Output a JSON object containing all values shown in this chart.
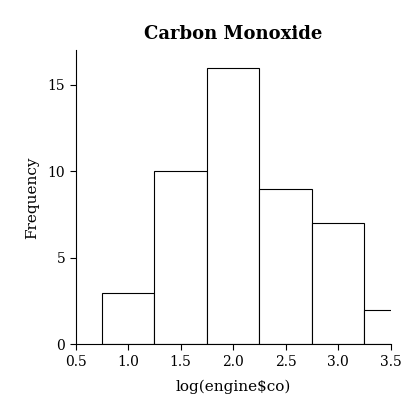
{
  "title": "Carbon Monoxide",
  "xlabel": "log(engine$co)",
  "ylabel": "Frequency",
  "bin_edges": [
    0.75,
    1.25,
    1.75,
    2.25,
    2.75,
    3.25,
    3.75
  ],
  "frequencies": [
    3,
    10,
    16,
    9,
    7,
    2
  ],
  "xlim": [
    0.5,
    3.5
  ],
  "ylim": [
    0,
    17
  ],
  "xticks": [
    0.5,
    1.0,
    1.5,
    2.0,
    2.5,
    3.0,
    3.5
  ],
  "yticks": [
    0,
    5,
    10,
    15
  ],
  "bar_color": "#ffffff",
  "bar_edgecolor": "#000000",
  "background_color": "#ffffff",
  "title_fontsize": 13,
  "label_fontsize": 11,
  "tick_fontsize": 10
}
